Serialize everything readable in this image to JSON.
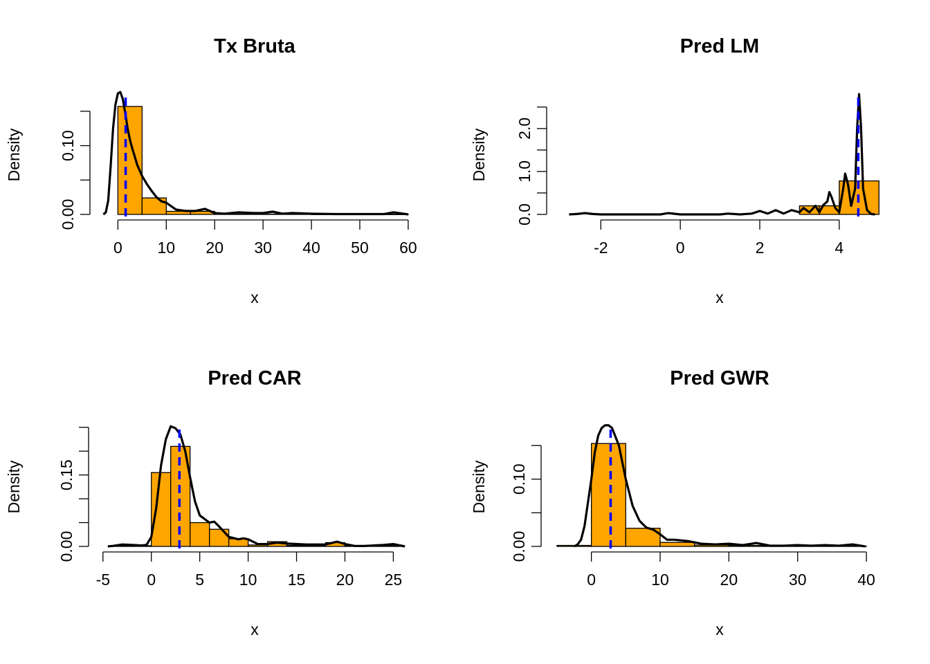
{
  "colors": {
    "bar_fill": "#FFA500",
    "bar_stroke": "#000000",
    "density": "#000000",
    "median_line": "#0000FF"
  },
  "chart_data": [
    {
      "type": "bar",
      "title": "Tx Bruta",
      "xlabel": "x",
      "ylabel": "Density",
      "xticks": [
        0,
        10,
        20,
        30,
        40,
        50,
        60
      ],
      "xtick_labels": [
        "0",
        "10",
        "20",
        "30",
        "40",
        "50",
        "60"
      ],
      "yticks": [
        0,
        0.05,
        0.1,
        0.15
      ],
      "ytick_labels": [
        "0.00",
        "",
        "0.10",
        ""
      ],
      "xlim": [
        -3.2,
        60.3
      ],
      "ylim": [
        0,
        0.178
      ],
      "bins": [
        [
          0,
          5,
          0.157
        ],
        [
          5,
          10,
          0.024
        ],
        [
          10,
          15,
          0.0045
        ],
        [
          15,
          20,
          0.0045
        ],
        [
          20,
          25,
          0.0005
        ],
        [
          25,
          30,
          0.0005
        ],
        [
          30,
          35,
          0.0005
        ],
        [
          35,
          40,
          0.0005
        ],
        [
          40,
          45,
          0.0002
        ],
        [
          45,
          50,
          0.0002
        ],
        [
          50,
          55,
          0.0002
        ],
        [
          55,
          60,
          0.0002
        ]
      ],
      "density": {
        "x": [
          -3,
          -2.5,
          -2,
          -1.5,
          -1,
          -0.5,
          0,
          0.5,
          1,
          1.5,
          2,
          2.5,
          3,
          3.5,
          4,
          5,
          6,
          7,
          8,
          9,
          10,
          11,
          12,
          14,
          16,
          18,
          19,
          20,
          22,
          25,
          28,
          30,
          32,
          34,
          36,
          40,
          45,
          50,
          55,
          57,
          60
        ],
        "y": [
          0.0,
          0.003,
          0.02,
          0.07,
          0.125,
          0.16,
          0.176,
          0.178,
          0.168,
          0.148,
          0.125,
          0.108,
          0.095,
          0.084,
          0.072,
          0.056,
          0.044,
          0.034,
          0.025,
          0.019,
          0.017,
          0.012,
          0.007,
          0.005,
          0.005,
          0.008,
          0.005,
          0.002,
          0.001,
          0.003,
          0.002,
          0.002,
          0.004,
          0.001,
          0.002,
          0.001,
          0.0005,
          0.0005,
          0.0005,
          0.003,
          0.0
        ]
      },
      "median": 1.6
    },
    {
      "type": "bar",
      "title": "Pred LM",
      "xlabel": "x",
      "ylabel": "Density",
      "xticks": [
        -2,
        0,
        2,
        4
      ],
      "xtick_labels": [
        "-2",
        "0",
        "2",
        "4"
      ],
      "yticks": [
        0,
        0.5,
        1,
        1.5,
        2,
        2.5
      ],
      "ytick_labels": [
        "0.0",
        "",
        "1.0",
        "",
        "2.0",
        ""
      ],
      "xlim": [
        -3.05,
        5.1
      ],
      "ylim": [
        0,
        2.85
      ],
      "bins": [
        [
          3,
          3.5,
          0.2
        ],
        [
          3.5,
          4,
          0.2
        ],
        [
          4,
          5,
          0.78
        ]
      ],
      "density": {
        "x": [
          -2.8,
          -2.6,
          -2.4,
          -2.2,
          -2.0,
          -1.5,
          -1.0,
          -0.5,
          -0.3,
          0.0,
          0.5,
          1.0,
          1.2,
          1.5,
          1.8,
          2.0,
          2.2,
          2.4,
          2.6,
          2.8,
          3.0,
          3.1,
          3.25,
          3.4,
          3.5,
          3.6,
          3.7,
          3.75,
          3.8,
          3.9,
          4.0,
          4.1,
          4.15,
          4.22,
          4.3,
          4.4,
          4.45,
          4.5,
          4.55,
          4.6,
          4.7,
          4.8,
          4.9
        ],
        "y": [
          0.0,
          0.01,
          0.03,
          0.01,
          0.0,
          0.0,
          0.0,
          0.0,
          0.03,
          0.0,
          0.0,
          0.0,
          0.02,
          0.0,
          0.02,
          0.08,
          0.02,
          0.1,
          0.02,
          0.1,
          0.05,
          0.15,
          0.05,
          0.2,
          0.05,
          0.22,
          0.3,
          0.52,
          0.42,
          0.15,
          0.05,
          0.6,
          0.95,
          0.7,
          0.2,
          0.6,
          2.0,
          2.8,
          2.0,
          0.6,
          0.1,
          0.01,
          0.0
        ]
      },
      "median": 4.48
    },
    {
      "type": "bar",
      "title": "Pred CAR",
      "xlabel": "x",
      "ylabel": "Density",
      "xticks": [
        -5,
        0,
        5,
        10,
        15,
        20,
        25
      ],
      "xtick_labels": [
        "-5",
        "0",
        "5",
        "10",
        "15",
        "20",
        "25"
      ],
      "yticks": [
        0,
        0.05,
        0.1,
        0.15,
        0.2,
        0.25
      ],
      "ytick_labels": [
        "0.00",
        "",
        "",
        "0.15",
        "",
        ""
      ],
      "xlim": [
        -5.2,
        26.4
      ],
      "ylim": [
        0,
        0.257
      ],
      "bins": [
        [
          -4,
          -2,
          0.0015
        ],
        [
          -2,
          0,
          0.0015
        ],
        [
          0,
          2,
          0.155
        ],
        [
          2,
          4,
          0.21
        ],
        [
          4,
          6,
          0.05
        ],
        [
          6,
          8,
          0.036
        ],
        [
          8,
          10,
          0.016
        ],
        [
          10,
          12,
          0.003
        ],
        [
          12,
          14,
          0.01
        ],
        [
          14,
          16,
          0.002
        ],
        [
          16,
          18,
          0.002
        ],
        [
          18,
          20,
          0.008
        ],
        [
          20,
          22,
          0.0015
        ],
        [
          22,
          24,
          0.0015
        ],
        [
          24,
          26,
          0.0015
        ]
      ],
      "density": {
        "x": [
          -4.5,
          -4,
          -3,
          -2,
          -1,
          -0.5,
          0,
          0.5,
          1,
          1.5,
          2,
          2.5,
          3,
          3.5,
          4,
          4.5,
          5,
          6,
          6.5,
          7,
          8,
          9,
          9.5,
          10,
          11,
          12,
          13,
          14,
          16,
          18,
          19.2,
          20,
          21,
          22,
          24,
          25,
          26.2
        ],
        "y": [
          0.0,
          0.001,
          0.004,
          0.003,
          0.002,
          0.003,
          0.02,
          0.08,
          0.17,
          0.225,
          0.252,
          0.248,
          0.235,
          0.2,
          0.145,
          0.095,
          0.065,
          0.05,
          0.052,
          0.042,
          0.02,
          0.015,
          0.017,
          0.015,
          0.005,
          0.005,
          0.008,
          0.006,
          0.004,
          0.004,
          0.01,
          0.005,
          0.001,
          0.001,
          0.003,
          0.005,
          0.0
        ]
      },
      "median": 2.9
    },
    {
      "type": "bar",
      "title": "Pred GWR",
      "xlabel": "x",
      "ylabel": "Density",
      "xticks": [
        0,
        10,
        20,
        30,
        40
      ],
      "xtick_labels": [
        "0",
        "10",
        "20",
        "30",
        "40"
      ],
      "yticks": [
        0,
        0.05,
        0.1,
        0.15
      ],
      "ytick_labels": [
        "0.00",
        "",
        "0.10",
        ""
      ],
      "xlim": [
        -5.5,
        41.0
      ],
      "ylim": [
        0,
        0.182
      ],
      "bins": [
        [
          -5,
          0,
          0.0015
        ],
        [
          0,
          5,
          0.153
        ],
        [
          5,
          10,
          0.027
        ],
        [
          10,
          15,
          0.006
        ],
        [
          15,
          20,
          0.002
        ],
        [
          20,
          25,
          0.0015
        ],
        [
          25,
          30,
          0.0005
        ],
        [
          30,
          35,
          0.0005
        ],
        [
          35,
          40,
          0.0005
        ]
      ],
      "density": {
        "x": [
          -2.5,
          -2,
          -1.5,
          -1,
          0,
          0.5,
          1,
          1.5,
          2,
          2.5,
          3,
          4,
          5,
          6,
          7,
          8,
          9,
          10,
          11,
          12,
          14,
          16,
          18,
          20,
          22,
          24,
          26,
          28,
          30,
          32,
          34,
          36,
          38,
          39.8
        ],
        "y": [
          0.0,
          0.003,
          0.01,
          0.03,
          0.1,
          0.14,
          0.165,
          0.176,
          0.18,
          0.18,
          0.176,
          0.15,
          0.1,
          0.06,
          0.038,
          0.028,
          0.025,
          0.018,
          0.01,
          0.01,
          0.008,
          0.004,
          0.003,
          0.004,
          0.002,
          0.005,
          0.001,
          0.001,
          0.002,
          0.001,
          0.002,
          0.001,
          0.003,
          0.0
        ]
      },
      "median": 2.8
    }
  ]
}
